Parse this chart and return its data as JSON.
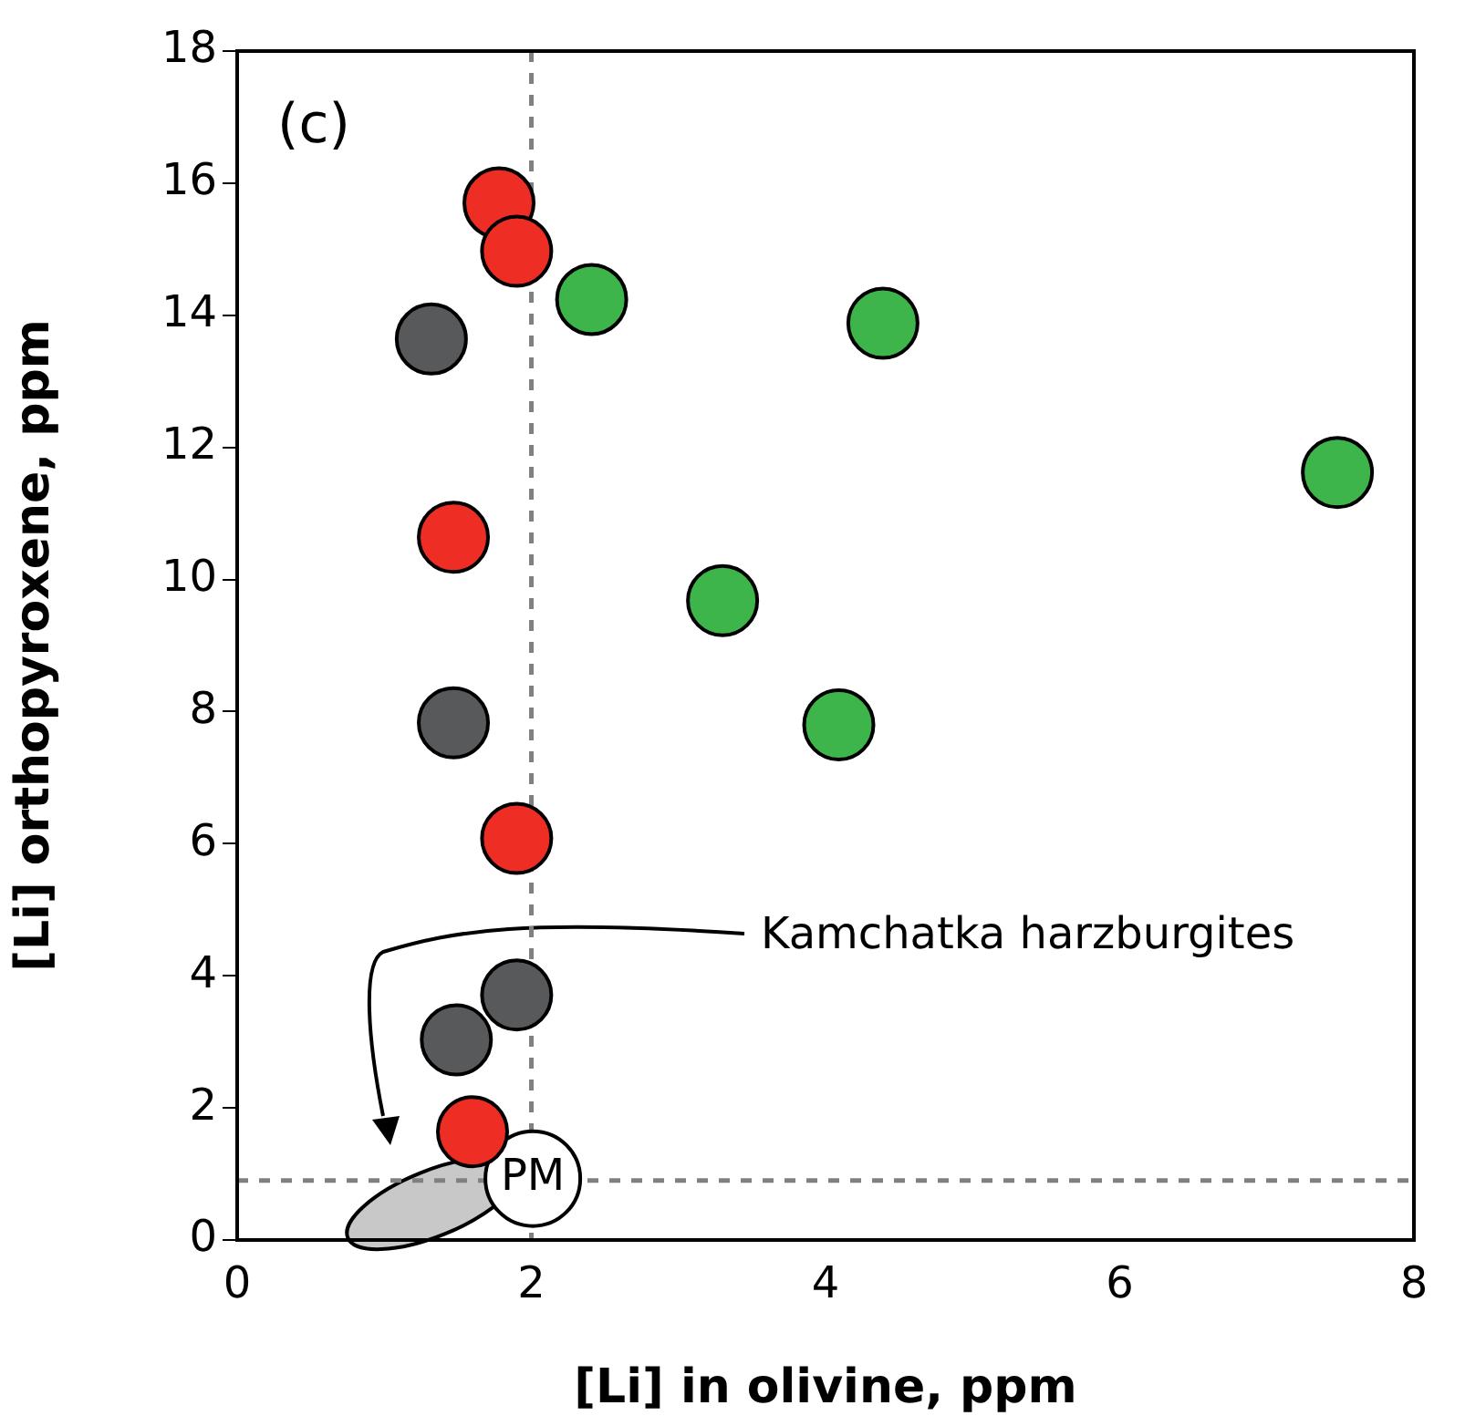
{
  "chart_data": {
    "type": "scatter",
    "xlabel": "[Li] in olivine, ppm",
    "ylabel": "[Li] orthopyroxene, ppm",
    "xlim": [
      0,
      8
    ],
    "xticks": [
      0,
      2,
      4,
      6,
      8
    ],
    "ylim": [
      0,
      18
    ],
    "yticks": [
      0,
      2,
      4,
      6,
      8,
      10,
      12,
      14,
      16,
      18
    ],
    "grid": false,
    "legend": false,
    "marker": "circle",
    "series": [
      {
        "color": "#ee2d24",
        "x": [
          1.78,
          1.9,
          1.47,
          1.9,
          1.6
        ],
        "values": [
          15.7,
          14.97,
          10.64,
          6.08,
          1.64
        ]
      },
      {
        "color": "#58595b",
        "x": [
          1.32,
          1.47,
          1.9,
          1.49
        ],
        "values": [
          13.64,
          7.83,
          3.71,
          3.03
        ]
      },
      {
        "color": "#3db54a",
        "x": [
          2.41,
          4.39,
          7.48,
          3.3,
          4.09
        ],
        "values": [
          14.24,
          13.88,
          11.62,
          9.68,
          7.8
        ]
      },
      {
        "color": "#ffffff",
        "x": [
          2.01
        ],
        "values": [
          0.93
        ]
      }
    ],
    "ref_lines": [
      {
        "axis": "x",
        "value": 2,
        "color": "#808080",
        "line_style": "dashed"
      },
      {
        "axis": "y",
        "value": 0.9,
        "color": "#808080",
        "line_style": "dashed"
      }
    ],
    "annotations": [
      "(c)",
      "Kamchatka harzburgites",
      {
        "text": "PM",
        "x": 2.01,
        "y": 0.93
      }
    ]
  }
}
